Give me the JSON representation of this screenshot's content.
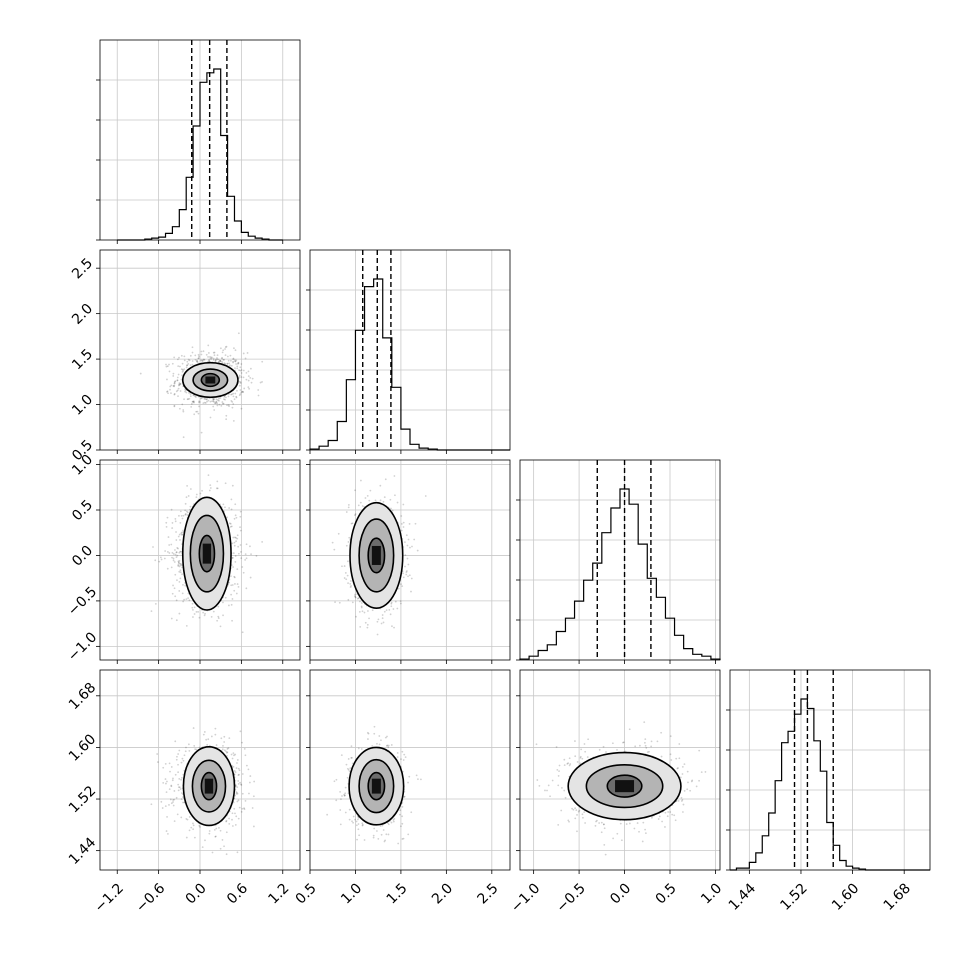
{
  "chart_data": {
    "type": "corner",
    "grid": true,
    "quantile_lines": "dashed",
    "parameters": [
      {
        "ticks": [
          -1.2,
          -0.6,
          0.0,
          0.6,
          1.2
        ],
        "tick_labels": [
          "−1.2",
          "−0.6",
          "0.0",
          "0.6",
          "1.2"
        ],
        "range": [
          -1.45,
          1.45
        ],
        "q16": -0.12,
        "median": 0.14,
        "q84": 0.39,
        "mean": 0.14,
        "sd": 0.25
      },
      {
        "ticks": [
          0.5,
          1.0,
          1.5,
          2.0,
          2.5
        ],
        "tick_labels": [
          "0.5",
          "1.0",
          "1.5",
          "2.0",
          "2.5"
        ],
        "range": [
          0.5,
          2.7
        ],
        "q16": 1.08,
        "median": 1.24,
        "q84": 1.39,
        "mean": 1.24,
        "sd": 0.15
      },
      {
        "ticks": [
          -1.0,
          -0.5,
          0.0,
          0.5,
          1.0
        ],
        "tick_labels": [
          "−1.0",
          "−0.5",
          "0.0",
          "0.5",
          "1.0"
        ],
        "range": [
          -1.15,
          1.05
        ],
        "q16": -0.3,
        "median": 0.0,
        "q84": 0.29,
        "mean": 0.0,
        "sd": 0.3
      },
      {
        "ticks": [
          1.44,
          1.52,
          1.6,
          1.68
        ],
        "tick_labels": [
          "1.44",
          "1.52",
          "1.60",
          "1.68"
        ],
        "range": [
          1.41,
          1.72
        ],
        "q16": 1.51,
        "median": 1.53,
        "q84": 1.57,
        "mean": 1.54,
        "sd": 0.03
      }
    ],
    "histograms": [
      {
        "param": 0,
        "bins": [
          -1.2,
          -1.1,
          -1.0,
          -0.9,
          -0.8,
          -0.7,
          -0.6,
          -0.5,
          -0.4,
          -0.3,
          -0.2,
          -0.1,
          0.0,
          0.1,
          0.2,
          0.3,
          0.4,
          0.5,
          0.6,
          0.7,
          0.8,
          0.9,
          1.0,
          1.1,
          1.2
        ],
        "counts": [
          0,
          0,
          0,
          0,
          0.005,
          0.01,
          0.015,
          0.035,
          0.07,
          0.16,
          0.33,
          0.6,
          0.83,
          0.88,
          0.9,
          0.55,
          0.23,
          0.1,
          0.04,
          0.02,
          0.01,
          0.005,
          0,
          0
        ]
      },
      {
        "param": 1,
        "bins": [
          0.5,
          0.6,
          0.7,
          0.8,
          0.9,
          1.0,
          1.1,
          1.2,
          1.3,
          1.4,
          1.5,
          1.6,
          1.7,
          1.8,
          1.9,
          2.0,
          2.1,
          2.2,
          2.3,
          2.4,
          2.5,
          2.6,
          2.7
        ],
        "counts": [
          0.005,
          0.02,
          0.05,
          0.15,
          0.37,
          0.63,
          0.86,
          0.9,
          0.59,
          0.33,
          0.11,
          0.03,
          0.01,
          0.005,
          0,
          0,
          0,
          0,
          0,
          0,
          0,
          0
        ]
      },
      {
        "param": 2,
        "bins": [
          -1.15,
          -1.05,
          -0.95,
          -0.85,
          -0.75,
          -0.65,
          -0.55,
          -0.45,
          -0.35,
          -0.25,
          -0.15,
          -0.05,
          0.05,
          0.15,
          0.25,
          0.35,
          0.45,
          0.55,
          0.65,
          0.75,
          0.85,
          0.95,
          1.05
        ],
        "counts": [
          0.005,
          0.02,
          0.05,
          0.08,
          0.15,
          0.22,
          0.31,
          0.42,
          0.51,
          0.67,
          0.8,
          0.9,
          0.82,
          0.61,
          0.43,
          0.33,
          0.22,
          0.13,
          0.06,
          0.03,
          0.02,
          0.005
        ]
      },
      {
        "param": 3,
        "bins": [
          1.41,
          1.42,
          1.43,
          1.44,
          1.45,
          1.46,
          1.47,
          1.48,
          1.49,
          1.5,
          1.51,
          1.52,
          1.53,
          1.54,
          1.55,
          1.56,
          1.57,
          1.58,
          1.59,
          1.6,
          1.61,
          1.62,
          1.63,
          1.64,
          1.65,
          1.66,
          1.67,
          1.68,
          1.69,
          1.7,
          1.71,
          1.72
        ],
        "counts": [
          0,
          0.01,
          0.01,
          0.04,
          0.09,
          0.18,
          0.3,
          0.47,
          0.67,
          0.73,
          0.82,
          0.9,
          0.85,
          0.68,
          0.52,
          0.25,
          0.13,
          0.05,
          0.02,
          0.01,
          0.005,
          0,
          0,
          0,
          0,
          0,
          0,
          0,
          0,
          0,
          0
        ]
      }
    ],
    "contours_2d": [
      {
        "x_param": 0,
        "y_param": 1,
        "center": [
          0.15,
          1.27
        ],
        "levels": [
          {
            "label": "outer",
            "half_width": [
              0.4,
              0.19
            ]
          },
          {
            "label": "middle",
            "half_width": [
              0.25,
              0.12
            ]
          },
          {
            "label": "inner",
            "half_width": [
              0.13,
              0.07
            ]
          }
        ]
      },
      {
        "x_param": 0,
        "y_param": 2,
        "center": [
          0.1,
          0.02
        ],
        "levels": [
          {
            "label": "outer",
            "half_width": [
              0.35,
              0.62
            ]
          },
          {
            "label": "middle",
            "half_width": [
              0.24,
              0.42
            ]
          },
          {
            "label": "inner",
            "half_width": [
              0.11,
              0.2
            ]
          }
        ]
      },
      {
        "x_param": 1,
        "y_param": 2,
        "center": [
          1.23,
          0.0
        ],
        "levels": [
          {
            "label": "outer",
            "half_width": [
              0.29,
              0.58
            ]
          },
          {
            "label": "middle",
            "half_width": [
              0.19,
              0.4
            ]
          },
          {
            "label": "inner",
            "half_width": [
              0.09,
              0.19
            ]
          }
        ]
      },
      {
        "x_param": 0,
        "y_param": 3,
        "center": [
          0.13,
          1.54
        ],
        "levels": [
          {
            "label": "outer",
            "half_width": [
              0.37,
              0.061
            ]
          },
          {
            "label": "middle",
            "half_width": [
              0.24,
              0.04
            ]
          },
          {
            "label": "inner",
            "half_width": [
              0.11,
              0.021
            ]
          }
        ]
      },
      {
        "x_param": 1,
        "y_param": 3,
        "center": [
          1.23,
          1.54
        ],
        "levels": [
          {
            "label": "outer",
            "half_width": [
              0.3,
              0.06
            ]
          },
          {
            "label": "middle",
            "half_width": [
              0.19,
              0.041
            ]
          },
          {
            "label": "inner",
            "half_width": [
              0.09,
              0.021
            ]
          }
        ]
      },
      {
        "x_param": 2,
        "y_param": 3,
        "center": [
          0.0,
          1.54
        ],
        "levels": [
          {
            "label": "outer",
            "half_width": [
              0.62,
              0.052
            ]
          },
          {
            "label": "middle",
            "half_width": [
              0.42,
              0.033
            ]
          },
          {
            "label": "inner",
            "half_width": [
              0.19,
              0.017
            ]
          }
        ]
      }
    ]
  }
}
